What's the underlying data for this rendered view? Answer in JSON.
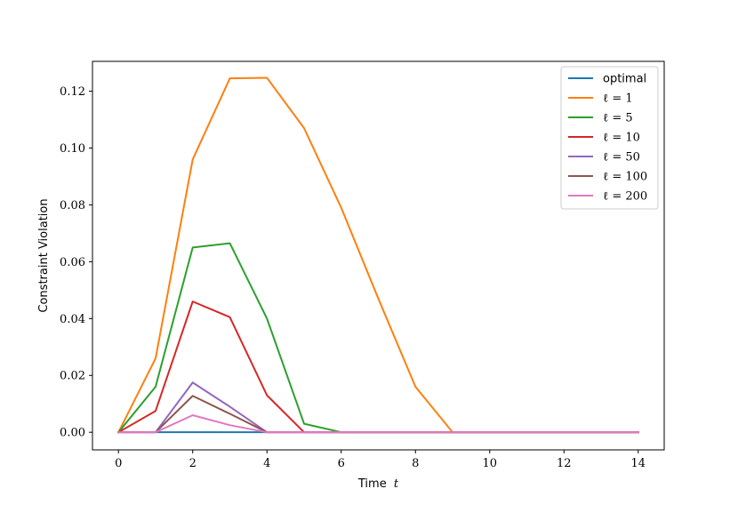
{
  "chart_data": {
    "type": "line",
    "title": "",
    "xlabel": "Time",
    "xlabel_var": "t",
    "ylabel": "Constraint Violation",
    "xlim": [
      -0.7,
      14.7
    ],
    "ylim": [
      -0.0062,
      0.1305
    ],
    "x_ticks": [
      0,
      2,
      4,
      6,
      8,
      10,
      12,
      14
    ],
    "x_tick_labels": [
      "0",
      "2",
      "4",
      "6",
      "8",
      "10",
      "12",
      "14"
    ],
    "y_ticks": [
      0.0,
      0.02,
      0.04,
      0.06,
      0.08,
      0.1,
      0.12
    ],
    "y_tick_labels": [
      "0.00",
      "0.02",
      "0.04",
      "0.06",
      "0.08",
      "0.10",
      "0.12"
    ],
    "grid": false,
    "legend_position": "top-right",
    "x": [
      0,
      1,
      2,
      3,
      4,
      5,
      6,
      7,
      8,
      9,
      10,
      11,
      12,
      13,
      14
    ],
    "series": [
      {
        "name": "optimal",
        "color": "#1f77b4",
        "values": [
          0,
          0,
          0,
          0,
          0,
          0,
          0,
          0,
          0,
          0,
          0,
          0,
          0,
          0,
          0
        ]
      },
      {
        "name": "ℓ = 1",
        "color": "#ff7f0e",
        "values": [
          0,
          0.026,
          0.096,
          0.1245,
          0.1247,
          0.107,
          0.079,
          0.047,
          0.016,
          0,
          0,
          0,
          0,
          0,
          0
        ]
      },
      {
        "name": "ℓ = 5",
        "color": "#2ca02c",
        "values": [
          0,
          0.016,
          0.065,
          0.0665,
          0.04,
          0.003,
          0,
          0,
          0,
          0,
          0,
          0,
          0,
          0,
          0
        ]
      },
      {
        "name": "ℓ = 10",
        "color": "#d62728",
        "values": [
          0,
          0.0075,
          0.046,
          0.0405,
          0.013,
          0,
          0,
          0,
          0,
          0,
          0,
          0,
          0,
          0,
          0
        ]
      },
      {
        "name": "ℓ = 50",
        "color": "#9467bd",
        "values": [
          0,
          0,
          0.0175,
          0.009,
          0,
          0,
          0,
          0,
          0,
          0,
          0,
          0,
          0,
          0,
          0
        ]
      },
      {
        "name": "ℓ = 100",
        "color": "#8c564b",
        "values": [
          0,
          0,
          0.0128,
          0.0065,
          0,
          0,
          0,
          0,
          0,
          0,
          0,
          0,
          0,
          0,
          0
        ]
      },
      {
        "name": "ℓ = 200",
        "color": "#e377c2",
        "values": [
          0,
          0,
          0.006,
          0.0025,
          0,
          0,
          0,
          0,
          0,
          0,
          0,
          0,
          0,
          0,
          0
        ]
      }
    ]
  }
}
